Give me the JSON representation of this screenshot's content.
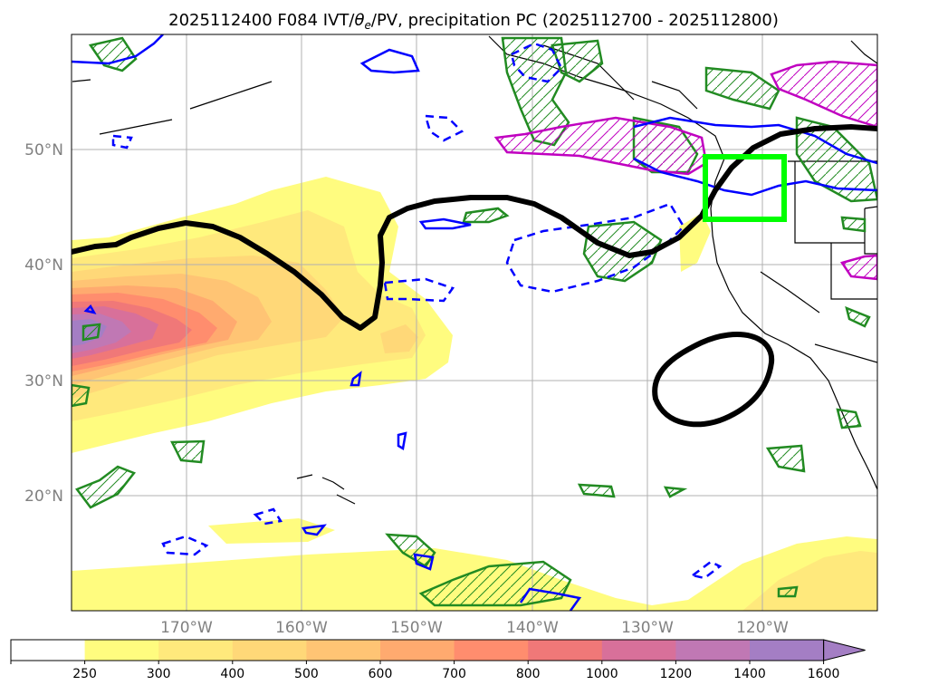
{
  "chart_data": {
    "type": "map",
    "title": "2025112400 F084 IVT/θe/PV, precipitation PC (2025112700 - 2025112800)",
    "title_parts": {
      "prefix": "2025112400 F084 IVT/",
      "theta": "θ",
      "theta_sub": "e",
      "suffix": "/PV, precipitation PC (2025112700 - 2025112800)"
    },
    "lon_range": [
      -180,
      -110
    ],
    "lat_range": [
      10,
      60
    ],
    "grid": true,
    "lat_ticks": [
      {
        "value": 20,
        "label": "20°N"
      },
      {
        "value": 30,
        "label": "30°N"
      },
      {
        "value": 40,
        "label": "40°N"
      },
      {
        "value": 50,
        "label": "50°N"
      }
    ],
    "lon_ticks": [
      {
        "value": -170,
        "label": "170°W"
      },
      {
        "value": -160,
        "label": "160°W"
      },
      {
        "value": -150,
        "label": "150°W"
      },
      {
        "value": -140,
        "label": "140°W"
      },
      {
        "value": -130,
        "label": "130°W"
      },
      {
        "value": -120,
        "label": "120°W"
      }
    ],
    "colorbar": {
      "levels": [
        250,
        300,
        400,
        500,
        600,
        700,
        800,
        1000,
        1200,
        1400,
        1600
      ],
      "labels": [
        "250",
        "300",
        "400",
        "500",
        "600",
        "700",
        "800",
        "1000",
        "1200",
        "1400",
        "1600"
      ],
      "colors": [
        "#ffffff",
        "#fffc7f",
        "#ffe97c",
        "#ffd878",
        "#ffc474",
        "#ffaa6f",
        "#ff8d6e",
        "#f07878",
        "#d8709a",
        "#c078b4",
        "#a47ec4"
      ],
      "extend": "max"
    },
    "ivt_peak": {
      "lon": -176,
      "lat": 34.5,
      "value": 1500
    },
    "highlight_box": {
      "lon": [
        -125,
        -118
      ],
      "lat": [
        44,
        49.5
      ],
      "color": "#00ff00"
    },
    "contour_colors": {
      "theta_e": "#000000",
      "pv_positive": "#0000ff",
      "precip_green": "#228b22",
      "precip_magenta": "#c000c0"
    }
  }
}
